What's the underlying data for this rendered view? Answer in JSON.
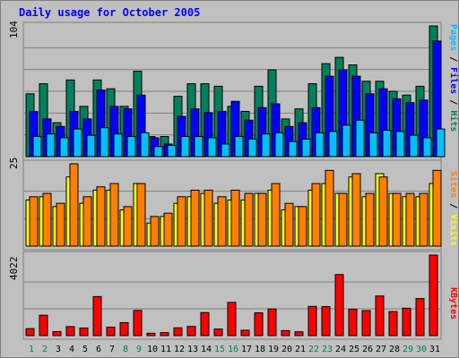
{
  "title": "Daily usage for October 2005",
  "colors": {
    "hits": "#00805C",
    "files": "#0000FF",
    "pages": "#00C0FF",
    "visits": "#FFFF00",
    "sites": "#FF8000",
    "kbytes": "#FF0000",
    "weekend_label": "#00805C",
    "weekday_label": "#000000"
  },
  "legends": {
    "top": [
      {
        "text": "Pages",
        "series": "pages"
      },
      {
        "text": " / ",
        "series": null
      },
      {
        "text": "Files",
        "series": "files"
      },
      {
        "text": " / ",
        "series": null
      },
      {
        "text": "Hits",
        "series": "hits"
      }
    ],
    "middle": [
      {
        "text": "Sites",
        "series": "sites"
      },
      {
        "text": " / ",
        "series": null
      },
      {
        "text": "Visits",
        "series": "visits"
      }
    ],
    "bottom": [
      {
        "text": "KBytes",
        "series": "kbytes"
      }
    ]
  },
  "chart_data": [
    {
      "type": "bar",
      "panel": "hits-files-pages",
      "ymax_label": "104",
      "ylim": [
        0,
        104
      ],
      "x": [
        "1",
        "2",
        "3",
        "4",
        "5",
        "6",
        "7",
        "8",
        "9",
        "10",
        "11",
        "12",
        "13",
        "14",
        "15",
        "16",
        "17",
        "18",
        "19",
        "20",
        "21",
        "22",
        "23",
        "24",
        "25",
        "26",
        "27",
        "28",
        "29",
        "30",
        "31"
      ],
      "series": [
        {
          "name": "Hits",
          "color_key": "hits",
          "values": [
            50,
            58,
            27,
            61,
            40,
            61,
            54,
            40,
            68,
            16,
            16,
            48,
            58,
            58,
            56,
            40,
            36,
            56,
            69,
            30,
            38,
            58,
            74,
            79,
            73,
            60,
            60,
            52,
            49,
            56,
            104
          ]
        },
        {
          "name": "Files",
          "color_key": "files",
          "values": [
            36,
            30,
            24,
            36,
            30,
            53,
            40,
            38,
            49,
            15,
            10,
            32,
            38,
            35,
            36,
            44,
            29,
            39,
            42,
            24,
            27,
            39,
            64,
            69,
            64,
            50,
            54,
            46,
            43,
            45,
            92
          ]
        },
        {
          "name": "Pages",
          "color_key": "pages",
          "values": [
            16,
            18,
            15,
            22,
            17,
            23,
            18,
            16,
            19,
            8,
            9,
            16,
            16,
            15,
            10,
            16,
            14,
            18,
            19,
            12,
            14,
            19,
            20,
            25,
            29,
            19,
            21,
            20,
            17,
            15,
            22
          ]
        }
      ]
    },
    {
      "type": "bar",
      "panel": "visits-sites",
      "ymax_label": "25",
      "ylim": [
        0,
        25
      ],
      "x": [
        "1",
        "2",
        "3",
        "4",
        "5",
        "6",
        "7",
        "8",
        "9",
        "10",
        "11",
        "12",
        "13",
        "14",
        "15",
        "16",
        "17",
        "18",
        "19",
        "20",
        "21",
        "22",
        "23",
        "24",
        "25",
        "26",
        "27",
        "28",
        "29",
        "30",
        "31"
      ],
      "series": [
        {
          "name": "Visits",
          "color_key": "visits",
          "values": [
            14,
            15,
            12,
            21,
            13,
            17,
            17,
            11,
            19,
            7,
            9,
            13,
            15,
            16,
            13,
            14,
            14,
            16,
            17,
            11,
            12,
            17,
            19,
            16,
            21,
            15,
            22,
            16,
            15,
            15,
            19
          ]
        },
        {
          "name": "Sites",
          "color_key": "sites",
          "values": [
            15,
            16,
            13,
            25,
            15,
            18,
            19,
            12,
            19,
            9,
            10,
            15,
            17,
            17,
            15,
            17,
            16,
            16,
            19,
            13,
            12,
            19,
            23,
            16,
            22,
            16,
            21,
            16,
            16,
            16,
            23
          ]
        }
      ]
    },
    {
      "type": "bar",
      "panel": "kbytes",
      "ymax_label": "4022",
      "ylim": [
        0,
        4022
      ],
      "x": [
        "1",
        "2",
        "3",
        "4",
        "5",
        "6",
        "7",
        "8",
        "9",
        "10",
        "11",
        "12",
        "13",
        "14",
        "15",
        "16",
        "17",
        "18",
        "19",
        "20",
        "21",
        "22",
        "23",
        "24",
        "25",
        "26",
        "27",
        "28",
        "29",
        "30",
        "31"
      ],
      "series": [
        {
          "name": "KBytes",
          "color_key": "kbytes",
          "values": [
            350,
            1020,
            200,
            450,
            380,
            1950,
            420,
            650,
            1260,
            120,
            150,
            390,
            460,
            1150,
            330,
            1660,
            270,
            1140,
            1330,
            250,
            190,
            1460,
            1450,
            3050,
            1320,
            1250,
            1980,
            1200,
            1370,
            1850,
            4022
          ]
        }
      ]
    }
  ],
  "days": [
    {
      "label": "1",
      "weekend": true
    },
    {
      "label": "2",
      "weekend": true
    },
    {
      "label": "3",
      "weekend": false
    },
    {
      "label": "4",
      "weekend": false
    },
    {
      "label": "5",
      "weekend": false
    },
    {
      "label": "6",
      "weekend": false
    },
    {
      "label": "7",
      "weekend": false
    },
    {
      "label": "8",
      "weekend": true
    },
    {
      "label": "9",
      "weekend": true
    },
    {
      "label": "10",
      "weekend": false
    },
    {
      "label": "11",
      "weekend": false
    },
    {
      "label": "12",
      "weekend": false
    },
    {
      "label": "13",
      "weekend": false
    },
    {
      "label": "14",
      "weekend": false
    },
    {
      "label": "15",
      "weekend": true
    },
    {
      "label": "16",
      "weekend": true
    },
    {
      "label": "17",
      "weekend": false
    },
    {
      "label": "18",
      "weekend": false
    },
    {
      "label": "19",
      "weekend": false
    },
    {
      "label": "20",
      "weekend": false
    },
    {
      "label": "21",
      "weekend": false
    },
    {
      "label": "22",
      "weekend": true
    },
    {
      "label": "23",
      "weekend": true
    },
    {
      "label": "24",
      "weekend": false
    },
    {
      "label": "25",
      "weekend": false
    },
    {
      "label": "26",
      "weekend": false
    },
    {
      "label": "27",
      "weekend": false
    },
    {
      "label": "28",
      "weekend": false
    },
    {
      "label": "29",
      "weekend": true
    },
    {
      "label": "30",
      "weekend": true
    },
    {
      "label": "31",
      "weekend": false
    }
  ]
}
